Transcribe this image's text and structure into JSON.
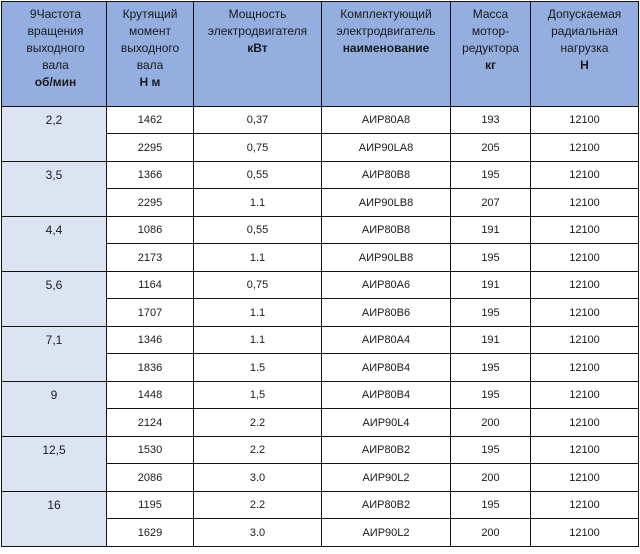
{
  "headers": [
    {
      "lines": [
        "9Частота",
        "вращения",
        "выходного",
        "вала"
      ],
      "unit": "об/мин"
    },
    {
      "lines": [
        "Крутящий",
        "момент",
        "выходного",
        "вала"
      ],
      "unit": "Н м"
    },
    {
      "lines": [
        "Мощность",
        "электродвигателя"
      ],
      "unit": "кВт"
    },
    {
      "lines": [
        "Комплектующий",
        "электродвигатель"
      ],
      "unit": "наименование"
    },
    {
      "lines": [
        "Масса",
        "мотор-",
        "редуктора"
      ],
      "unit": "кг"
    },
    {
      "lines": [
        "Допускаемая",
        "радиальная",
        "нагрузка"
      ],
      "unit": "Н"
    }
  ],
  "groups": [
    {
      "speed": "2,2",
      "rows": [
        [
          "1462",
          "0,37",
          "АИР80А8",
          "193",
          "12100"
        ],
        [
          "2295",
          "0,75",
          "АИР90LA8",
          "205",
          "12100"
        ]
      ]
    },
    {
      "speed": "3,5",
      "rows": [
        [
          "1366",
          "0,55",
          "АИР80В8",
          "195",
          "12100"
        ],
        [
          "2295",
          "1.1",
          "АИР90LB8",
          "207",
          "12100"
        ]
      ]
    },
    {
      "speed": "4,4",
      "rows": [
        [
          "1086",
          "0,55",
          "АИР80В8",
          "191",
          "12100"
        ],
        [
          "2173",
          "1.1",
          "АИР90LB8",
          "195",
          "12100"
        ]
      ]
    },
    {
      "speed": "5,6",
      "rows": [
        [
          "1164",
          "0,75",
          "АИР80А6",
          "191",
          "12100"
        ],
        [
          "1707",
          "1.1",
          "АИР80В6",
          "195",
          "12100"
        ]
      ]
    },
    {
      "speed": "7,1",
      "rows": [
        [
          "1346",
          "1.1",
          "АИР80А4",
          "191",
          "12100"
        ],
        [
          "1836",
          "1.5",
          "АИР80В4",
          "195",
          "12100"
        ]
      ]
    },
    {
      "speed": "9",
      "rows": [
        [
          "1448",
          "1,5",
          "АИР80В4",
          "195",
          "12100"
        ],
        [
          "2124",
          "2.2",
          "АИР90L4",
          "200",
          "12100"
        ]
      ]
    },
    {
      "speed": "12,5",
      "rows": [
        [
          "1530",
          "2.2",
          "АИР80В2",
          "195",
          "12100"
        ],
        [
          "2086",
          "3.0",
          "АИР90L2",
          "200",
          "12100"
        ]
      ]
    },
    {
      "speed": "16",
      "rows": [
        [
          "1195",
          "2.2",
          "АИР80В2",
          "195",
          "12100"
        ],
        [
          "1629",
          "3.0",
          "АИР90L2",
          "200",
          "12100"
        ]
      ]
    }
  ],
  "colors": {
    "header_bg": "#93aedf",
    "speed_cell_bg": "#dce4f2",
    "border": "#111111"
  }
}
